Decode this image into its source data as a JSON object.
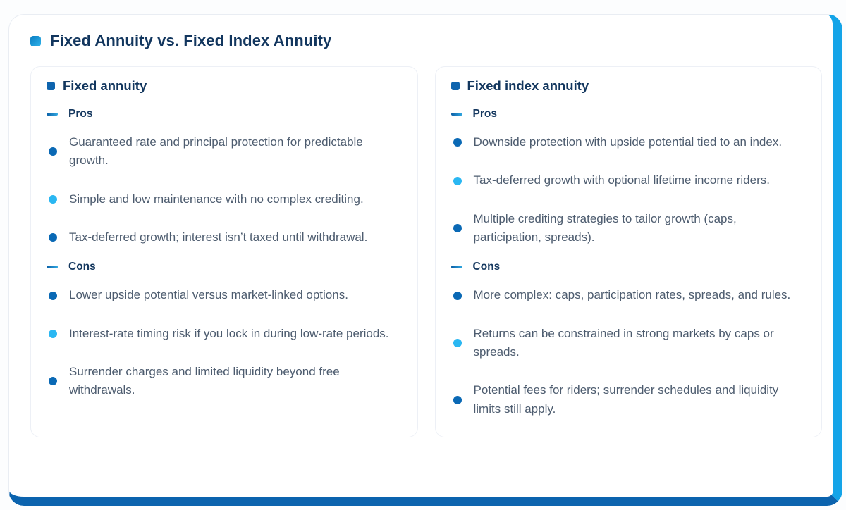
{
  "page": {
    "title": "Fixed Annuity vs. Fixed Index Annuity"
  },
  "colors": {
    "accent_stripe_right": "#14a4e8",
    "accent_stripe_bottom": "#0b63ae",
    "heading_navy": "#12365e",
    "body_text": "#4d5c6f",
    "bullet_dark": "#0a69b5",
    "bullet_light": "#2ab7f2",
    "square_solid": "#0e64ae"
  },
  "cards": [
    {
      "title": "Fixed annuity",
      "sections": [
        {
          "label": "Pros",
          "items": [
            "Guaranteed rate and principal protection for predictable growth.",
            "Simple and low maintenance with no complex crediting.",
            "Tax-deferred growth; interest isn’t taxed until withdrawal."
          ]
        },
        {
          "label": "Cons",
          "items": [
            "Lower upside potential versus market-linked options.",
            "Interest-rate timing risk if you lock in during low-rate periods.",
            "Surrender charges and limited liquidity beyond free withdrawals."
          ]
        }
      ]
    },
    {
      "title": "Fixed index annuity",
      "sections": [
        {
          "label": "Pros",
          "items": [
            "Downside protection with upside potential tied to an index.",
            "Tax-deferred growth with optional lifetime income riders.",
            "Multiple crediting strategies to tailor growth (caps, participation, spreads)."
          ]
        },
        {
          "label": "Cons",
          "items": [
            "More complex: caps, participation rates, spreads, and rules.",
            "Returns can be constrained in strong markets by caps or spreads.",
            "Potential fees for riders; surrender schedules and liquidity limits still apply."
          ]
        }
      ]
    }
  ]
}
